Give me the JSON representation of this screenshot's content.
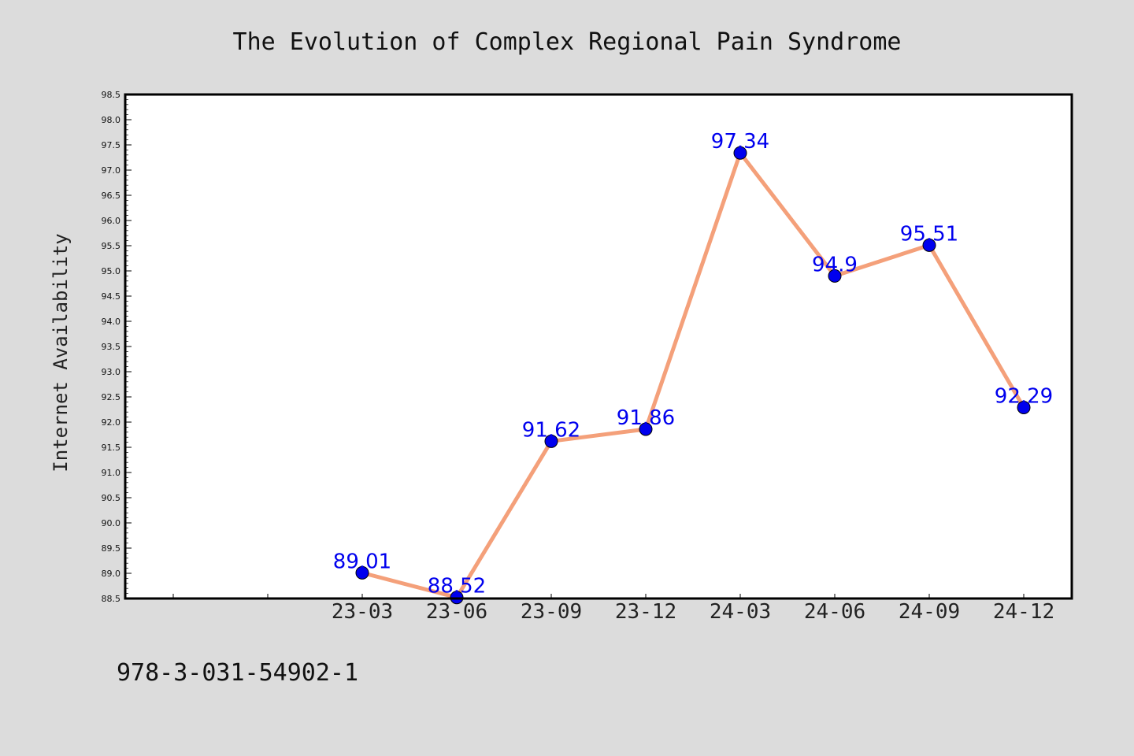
{
  "chart_data": {
    "type": "line",
    "title": "The Evolution of Complex Regional Pain Syndrome",
    "xlabel": "",
    "ylabel": "Internet Availability",
    "categories": [
      "23-03",
      "23-06",
      "23-09",
      "23-12",
      "24-03",
      "24-06",
      "24-09",
      "24-12"
    ],
    "series": [
      {
        "values": [
          89.01,
          88.52,
          91.62,
          91.86,
          97.34,
          94.9,
          95.51,
          92.29
        ],
        "labels": [
          "89.01",
          "88.52",
          "91.62",
          "91.86",
          "97.34",
          "94.9",
          "95.51",
          "92.29"
        ]
      }
    ],
    "ylim": [
      88.5,
      98.5
    ],
    "yticks": [
      "88.5",
      "89.0",
      "89.5",
      "90.0",
      "90.5",
      "91.0",
      "91.5",
      "92.0",
      "92.5",
      "93.0",
      "93.5",
      "94.0",
      "94.5",
      "95.0",
      "95.5",
      "96.0",
      "96.5",
      "97.0",
      "97.5",
      "98.0",
      "98.5"
    ],
    "grid": false,
    "line_color": "#f4a07a",
    "marker_color": "#0000ee",
    "label_color": "#0000ee",
    "background_color": "#dcdcdc",
    "plot_background": "#ffffff"
  },
  "footer": {
    "isbn": "978-3-031-54902-1"
  }
}
